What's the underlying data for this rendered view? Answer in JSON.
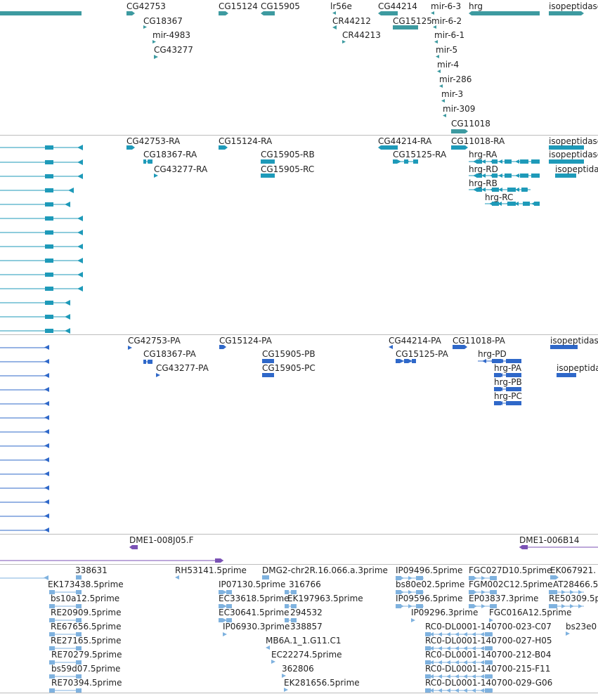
{
  "colors": {
    "gene": "#3d9aa0",
    "transcript": "#1e9ab9",
    "protein": "#2f68c9",
    "clone": "#7b52b5",
    "est": "#7fb2df",
    "divider": "#bdbdbd"
  },
  "tracks": [
    {
      "id": "genes",
      "labels": [
        "CG42753",
        "CG18367",
        "mir-4983",
        "CG43277",
        "CG15124",
        "CG15905",
        "lr56e",
        "CR44212",
        "CR44213",
        "CG44214",
        "CG15125",
        "mir-6-3",
        "mir-6-2",
        "mir-6-1",
        "mir-5",
        "mir-4",
        "mir-286",
        "mir-3",
        "mir-309",
        "CG11018",
        "hrg",
        "isopeptidase"
      ]
    },
    {
      "id": "transcripts",
      "labels": [
        "CG42753-RA",
        "CG18367-RA",
        "CG43277-RA",
        "CG15124-RA",
        "CG15905-RB",
        "CG15905-RC",
        "CG44214-RA",
        "CG15125-RA",
        "CG11018-RA",
        "hrg-RA",
        "hrg-RD",
        "hrg-RB",
        "hrg-RC",
        "isopeptidase",
        "isopeptidase",
        "isopeptidas"
      ]
    },
    {
      "id": "proteins",
      "labels": [
        "CG42753-PA",
        "CG18367-PA",
        "CG43277-PA",
        "CG15124-PA",
        "CG15905-PB",
        "CG15905-PC",
        "CG44214-PA",
        "CG15125-PA",
        "CG11018-PA",
        "hrg-PD",
        "hrg-PA",
        "hrg-PB",
        "hrg-PC",
        "isopeptidas",
        "isopeptidas"
      ]
    },
    {
      "id": "clones",
      "labels": [
        "DME1-008J05.F",
        "DME1-006B14"
      ]
    },
    {
      "id": "ests",
      "labels": [
        "338631",
        "RH53141.5prime",
        "DMG2-chr2R.16.066.a.3prime",
        "IP09496.5prime",
        "FGC027D10.5prime",
        "EK067921.",
        "EK173438.5prime",
        "IP07130.5prime",
        "316766",
        "bs80e02.5prime",
        "FGM002C12.5prime",
        "AT28466.5",
        "bs10a12.5prime",
        "EC33618.5prime",
        "EK197963.5prime",
        "IP09596.5prime",
        "EP03837.3prime",
        "RE50309.5p",
        "RE20909.5prime",
        "EC30641.5prime",
        "294532",
        "IP09296.3prime",
        "FGC016A12.5prime",
        "RE67656.5prime",
        "IP06930.3prime",
        "338857",
        "RC0-DL0001-140700-023-C07",
        "bs23e0",
        "RE27165.5prime",
        "MB6A.1_1.G11.C1",
        "RC0-DL0001-140700-027-H05",
        "RE70279.5prime",
        "EC22274.5prime",
        "RC0-DL0001-140700-212-B04",
        "bs59d07.5prime",
        "362806",
        "RC0-DL0001-140700-215-F11",
        "RE70394.5prime",
        "EK281656.5prime",
        "RC0-DL0001-140700-029-G06"
      ]
    }
  ]
}
